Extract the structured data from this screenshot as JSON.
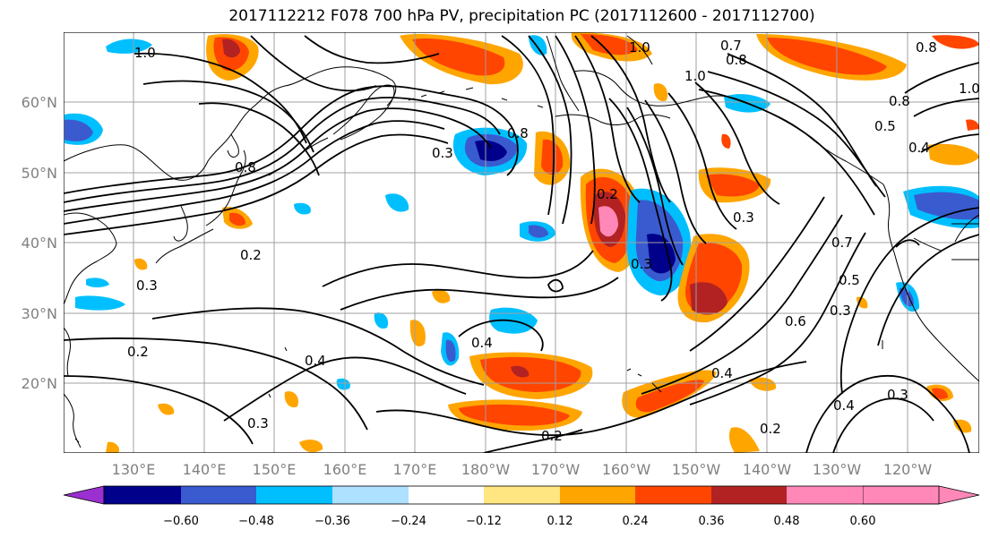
{
  "title": "2017112212 F078 700 hPa PV, precipitation PC (2017112600 - 2017112700)",
  "lat_labels": [
    "60°N",
    "50°N",
    "40°N",
    "30°N",
    "20°N"
  ],
  "lon_labels": [
    "130°E",
    "140°E",
    "150°E",
    "160°E",
    "170°E",
    "180°W",
    "170°W",
    "160°W",
    "150°W",
    "140°W",
    "130°W",
    "120°W"
  ],
  "colorbar": {
    "tick_labels": [
      "−0.60",
      "−0.48",
      "−0.36",
      "−0.24",
      "−0.12",
      "0.12",
      "0.24",
      "0.36",
      "0.48",
      "0.60"
    ],
    "colors": [
      "#9b30d0",
      "#00008b",
      "#3a5bd0",
      "#00bfff",
      "#aee0ff",
      "#ffffff",
      "#ffe680",
      "#ffa500",
      "#ff4500",
      "#b22222",
      "#ff88b8"
    ]
  },
  "contour_labels": [
    "1.0",
    "1.0",
    "0.7",
    "0.8",
    "0.8",
    "1.0",
    "0.8",
    "1.0",
    "0.5",
    "0.4",
    "0.3",
    "0.8",
    "0.8",
    "0.2",
    "0.2",
    "0.3",
    "0.3",
    "0.7",
    "0.5",
    "0.3",
    "0.6",
    "0.3",
    "0.2",
    "0.4",
    "0.4",
    "0.4",
    "0.2",
    "0.2",
    "0.3",
    "0.4",
    "0.3"
  ]
}
